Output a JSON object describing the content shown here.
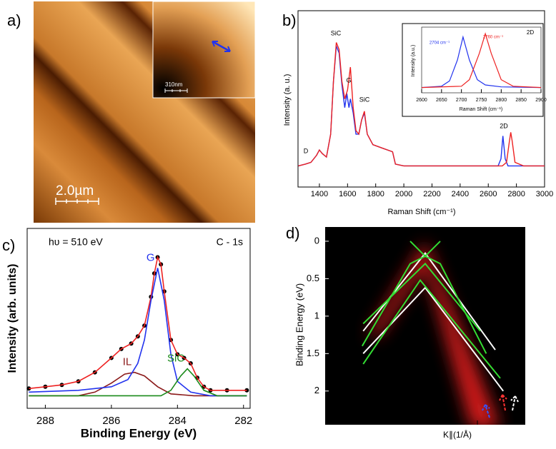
{
  "chart_data": [
    {
      "type": "image",
      "label": "a)",
      "scale_bar": "2.0µm",
      "inset_scale_bar": "310nm"
    },
    {
      "type": "line",
      "label": "b)",
      "xlabel": "Raman Shift (cm⁻¹)",
      "ylabel": "Intensity (a. u.)",
      "xlim": [
        1248,
        3000
      ],
      "xticks": [
        1400,
        1600,
        1800,
        2000,
        2200,
        2400,
        2600,
        2800,
        3000
      ],
      "ylim": [
        0,
        1
      ],
      "annotations": [
        "SiC",
        "G",
        "SiC",
        "D",
        "2D"
      ],
      "series": [
        {
          "color": "#2233ee",
          "x": [
            1250,
            1300,
            1340,
            1380,
            1400,
            1420,
            1450,
            1480,
            1500,
            1520,
            1540,
            1560,
            1580,
            1595,
            1610,
            1620,
            1640,
            1660,
            1680,
            1700,
            1720,
            1740,
            1780,
            1850,
            1920,
            1940,
            2000,
            2200,
            2400,
            2600,
            2670,
            2690,
            2704,
            2720,
            2740,
            2850,
            3000
          ],
          "values": [
            0.12,
            0.13,
            0.14,
            0.18,
            0.21,
            0.19,
            0.17,
            0.3,
            0.6,
            0.8,
            0.76,
            0.58,
            0.45,
            0.53,
            0.45,
            0.5,
            0.42,
            0.3,
            0.3,
            0.38,
            0.42,
            0.3,
            0.24,
            0.22,
            0.2,
            0.13,
            0.12,
            0.12,
            0.12,
            0.12,
            0.12,
            0.16,
            0.29,
            0.16,
            0.12,
            0.12,
            0.12
          ]
        },
        {
          "color": "#ee2222",
          "x": [
            1250,
            1300,
            1340,
            1380,
            1400,
            1420,
            1450,
            1480,
            1500,
            1520,
            1540,
            1560,
            1580,
            1600,
            1620,
            1640,
            1660,
            1680,
            1700,
            1720,
            1740,
            1780,
            1850,
            1920,
            1940,
            2000,
            2200,
            2400,
            2600,
            2700,
            2730,
            2750,
            2760,
            2770,
            2790,
            2850,
            3000
          ],
          "values": [
            0.12,
            0.13,
            0.14,
            0.18,
            0.21,
            0.19,
            0.17,
            0.3,
            0.6,
            0.82,
            0.78,
            0.6,
            0.5,
            0.55,
            0.68,
            0.45,
            0.32,
            0.3,
            0.38,
            0.43,
            0.3,
            0.24,
            0.22,
            0.2,
            0.13,
            0.12,
            0.12,
            0.12,
            0.12,
            0.12,
            0.14,
            0.26,
            0.31,
            0.26,
            0.14,
            0.12,
            0.12
          ]
        }
      ],
      "inset": {
        "type": "line",
        "title": "2D",
        "xlabel": "Raman Shift (cm⁻¹)",
        "ylabel": "Intensity (a.u.)",
        "xlim": [
          2600,
          2900
        ],
        "xticks": [
          2600,
          2650,
          2700,
          2750,
          2800,
          2850,
          2900
        ],
        "ylim": [
          0,
          1
        ],
        "annotations": [
          "2704 cm⁻¹",
          "2760 cm⁻¹"
        ],
        "series": [
          {
            "color": "#2233ee",
            "x": [
              2600,
              2650,
              2670,
              2690,
              2704,
              2720,
              2740,
              2760,
              2800,
              2900
            ],
            "values": [
              0.08,
              0.1,
              0.18,
              0.5,
              0.85,
              0.5,
              0.2,
              0.12,
              0.09,
              0.08
            ]
          },
          {
            "color": "#ee2222",
            "x": [
              2600,
              2700,
              2720,
              2745,
              2760,
              2775,
              2800,
              2830,
              2900
            ],
            "values": [
              0.08,
              0.1,
              0.2,
              0.6,
              0.9,
              0.6,
              0.2,
              0.1,
              0.08
            ]
          }
        ]
      }
    },
    {
      "type": "line",
      "label": "c)",
      "xlabel": "Binding Energy (eV)",
      "ylabel": "Intensity (arb. units)",
      "annotations": [
        "hυ = 510 eV",
        "C - 1s"
      ],
      "xlim": [
        288.55,
        281.8
      ],
      "xticks": [
        288,
        286,
        284,
        282
      ],
      "ylim": [
        0,
        1
      ],
      "series": [
        {
          "color": "#000000",
          "markers": true,
          "x": [
            288.5,
            288,
            287.5,
            287,
            286.5,
            286,
            285.7,
            285.4,
            285.2,
            285,
            284.8,
            284.7,
            284.6,
            284.5,
            284.4,
            284.2,
            284,
            283.8,
            283.6,
            283.4,
            283.2,
            283,
            282.5,
            281.9
          ],
          "values": [
            0.11,
            0.12,
            0.13,
            0.15,
            0.2,
            0.28,
            0.33,
            0.36,
            0.4,
            0.46,
            0.62,
            0.75,
            0.84,
            0.8,
            0.65,
            0.38,
            0.3,
            0.28,
            0.25,
            0.17,
            0.12,
            0.1,
            0.1,
            0.1
          ]
        },
        {
          "color": "#ee2222",
          "x": [
            288.5,
            288,
            287.5,
            287,
            286.5,
            286,
            285.7,
            285.4,
            285.2,
            285,
            284.8,
            284.7,
            284.6,
            284.5,
            284.4,
            284.2,
            284,
            283.8,
            283.6,
            283.4,
            283.2,
            283,
            282.5,
            281.9
          ],
          "values": [
            0.11,
            0.12,
            0.13,
            0.15,
            0.2,
            0.28,
            0.33,
            0.36,
            0.4,
            0.46,
            0.62,
            0.75,
            0.84,
            0.8,
            0.65,
            0.38,
            0.3,
            0.28,
            0.25,
            0.17,
            0.12,
            0.1,
            0.1,
            0.1
          ]
        },
        {
          "name": "IL",
          "color": "#8b1a1a",
          "x": [
            288.5,
            287,
            286.5,
            286,
            285.6,
            285.3,
            285,
            284.6,
            284.2,
            283.5,
            281.9
          ],
          "values": [
            0.07,
            0.07,
            0.09,
            0.14,
            0.19,
            0.2,
            0.18,
            0.12,
            0.08,
            0.07,
            0.07
          ]
        },
        {
          "name": "G",
          "color": "#2233ee",
          "x": [
            288.5,
            287,
            286,
            285.5,
            285.2,
            285,
            284.8,
            284.6,
            284.4,
            284.2,
            284,
            283.6,
            283,
            281.9
          ],
          "values": [
            0.09,
            0.1,
            0.12,
            0.16,
            0.25,
            0.38,
            0.6,
            0.78,
            0.6,
            0.3,
            0.15,
            0.09,
            0.07,
            0.07
          ]
        },
        {
          "name": "SiC",
          "color": "#1a8a1a",
          "x": [
            288.5,
            284.5,
            284.2,
            283.9,
            283.7,
            283.5,
            283.2,
            282.8,
            281.9
          ],
          "values": [
            0.07,
            0.07,
            0.1,
            0.18,
            0.22,
            0.18,
            0.1,
            0.07,
            0.07
          ]
        }
      ]
    },
    {
      "type": "band",
      "label": "d)",
      "xlabel": "K∥(1/Å)",
      "ylabel": "Binding Energy (eV)",
      "xlim": [
        -1,
        1
      ],
      "ylim": [
        2.45,
        -0.19
      ],
      "yticks": [
        0,
        0.5,
        1,
        1.5,
        2
      ],
      "series": [
        {
          "color": "#ffffff",
          "x": [
            -0.62,
            0,
            0.7
          ],
          "values": [
            1.2,
            0.16,
            1.45
          ]
        },
        {
          "color": "#ffffff",
          "x": [
            -0.62,
            0,
            0.78
          ],
          "values": [
            1.5,
            0.62,
            2.0
          ]
        },
        {
          "color": "#33dd33",
          "x": [
            -0.63,
            -0.15,
            0,
            0.15,
            0.61
          ],
          "values": [
            1.4,
            0.3,
            0.2,
            0.3,
            1.5
          ]
        },
        {
          "color": "#33dd33",
          "x": [
            -0.15,
            0,
            0.15
          ],
          "values": [
            0,
            0.2,
            0
          ]
        },
        {
          "color": "#33dd33",
          "x": [
            -0.62,
            -0.05,
            0.75
          ],
          "values": [
            1.64,
            0.52,
            1.83
          ]
        },
        {
          "color": "#33dd33",
          "x": [
            -0.62,
            0,
            0.55
          ],
          "values": [
            1.1,
            0.3,
            1.2
          ]
        }
      ]
    }
  ]
}
